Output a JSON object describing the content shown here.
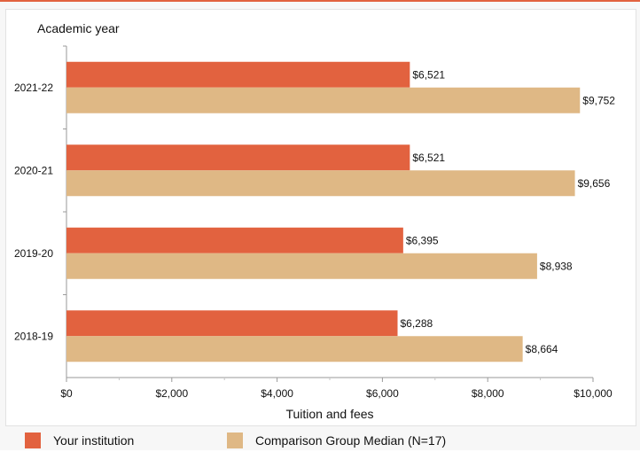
{
  "chart_data": {
    "type": "bar",
    "orientation": "horizontal",
    "ylabel": "Academic year",
    "xlabel": "Tuition and fees",
    "categories": [
      "2021-22",
      "2020-21",
      "2019-20",
      "2018-19"
    ],
    "series": [
      {
        "name": "Your institution",
        "color": "#e2623f",
        "values": [
          6521,
          6521,
          6395,
          6288
        ],
        "labels": [
          "$6,521",
          "$6,521",
          "$6,395",
          "$6,288"
        ]
      },
      {
        "name": "Comparison Group Median (N=17)",
        "color": "#dfb885",
        "values": [
          9752,
          9656,
          8938,
          8664
        ],
        "labels": [
          "$9,752",
          "$9,656",
          "$8,938",
          "$8,664"
        ]
      }
    ],
    "xlim": [
      0,
      10000
    ],
    "xticks": [
      0,
      2000,
      4000,
      6000,
      8000,
      10000
    ],
    "xtick_labels": [
      "$0",
      "$2,000",
      "$4,000",
      "$6,000",
      "$8,000",
      "$10,000"
    ],
    "grid": false,
    "legend_position": "bottom"
  }
}
